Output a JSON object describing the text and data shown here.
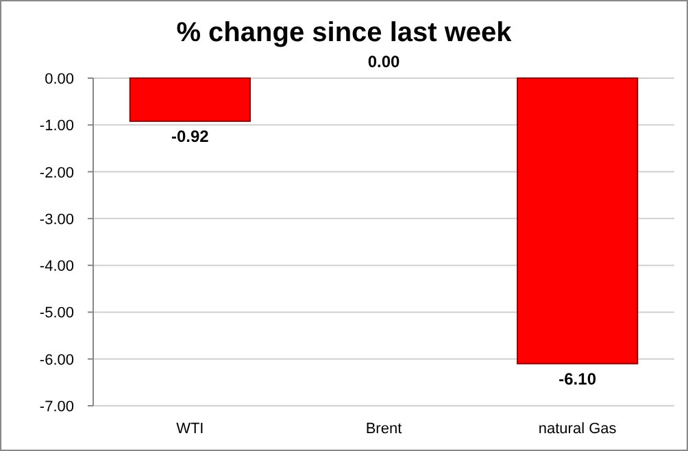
{
  "chart_data": {
    "type": "bar",
    "title": "% change since last week",
    "categories": [
      "WTI",
      "Brent",
      "natural Gas"
    ],
    "values": [
      -0.92,
      0.0,
      -6.1
    ],
    "color": "#ff0000",
    "value_labels": [
      "-0.92",
      "0.00",
      "-6.10"
    ],
    "ylim": [
      -7,
      0
    ],
    "yticks": [
      {
        "value": 0,
        "label": "0.00"
      },
      {
        "value": -1,
        "label": "-1.00"
      },
      {
        "value": -2,
        "label": "-2.00"
      },
      {
        "value": -3,
        "label": "-3.00"
      },
      {
        "value": -4,
        "label": "-4.00"
      },
      {
        "value": -5,
        "label": "-5.00"
      },
      {
        "value": -6,
        "label": "-6.00"
      },
      {
        "value": -7,
        "label": "-7.00"
      }
    ],
    "grid": "y"
  }
}
